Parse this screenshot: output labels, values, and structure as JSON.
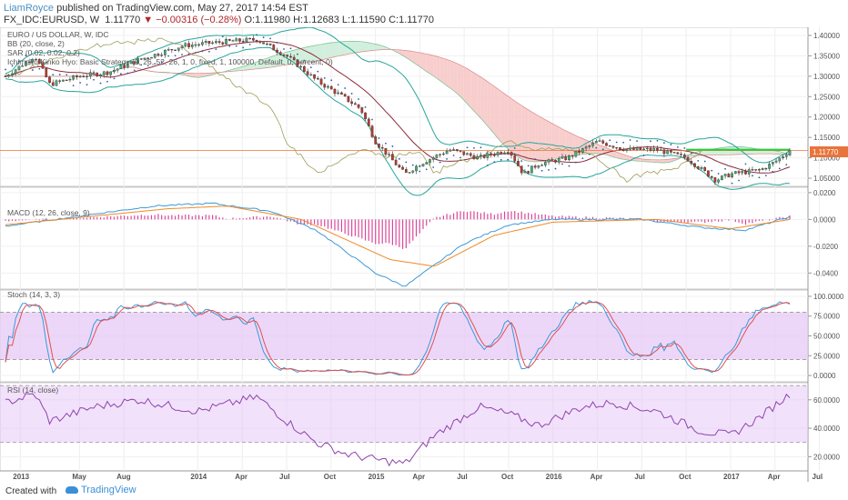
{
  "header": {
    "author": "LiamRoyce",
    "published_text": "published on TradingView.com, May 27, 2017 14:54 EST",
    "symbol_line": "FX_IDC:EURUSD, W",
    "last": "1.11770",
    "change": "▼ −0.00316 (−0.28%)",
    "ohlc": "O:1.11980 H:1.12683 L:1.11590 C:1.11770"
  },
  "colors": {
    "bull": "#4caf7d",
    "bear": "#c0392b",
    "bb": "#26a69a",
    "sar": "#2b5ba8",
    "kumo_bull": "#c9ecd6",
    "kumo_bear": "#f7c6c4",
    "chikou": "#9e9e5a",
    "kijun": "#8d2b3b",
    "price_line": "#e8743b",
    "macd": "#3b9ad9",
    "signal": "#f08a24",
    "hist": "#d9489b",
    "stoch_k": "#3b9ad9",
    "stoch_d": "#e05050",
    "band_fill": "#e7c9f5",
    "rsi": "#8e44ad",
    "green_line": "#2ecc40"
  },
  "panes": {
    "price": {
      "labels": [
        "EURO / US DOLLAR, W, IDC",
        "BB (20, close, 2)",
        "SAR (0.02, 0.02, 0.2)",
        "Ichimoku Kinko Hyo: Basic Strategy (9, 26, 52, 26, 1, 0, fixed, 1, 100000, Default, 0, percent, 0)"
      ],
      "ticks": [
        "1.40000",
        "1.35000",
        "1.30000",
        "1.25000",
        "1.20000",
        "1.15000",
        "1.10000",
        "1.05000"
      ],
      "last_label": "1.11770"
    },
    "macd": {
      "label": "MACD (12, 26, close, 9)",
      "ticks": [
        "0.0200",
        "0.0000",
        "-0.0200",
        "-0.0400"
      ]
    },
    "stoch": {
      "label": "Stoch (14, 3, 3)",
      "ticks": [
        "100.0000",
        "75.0000",
        "50.0000",
        "25.0000",
        "0.0000"
      ]
    },
    "rsi": {
      "label": "RSI (14, close)",
      "ticks": [
        "60.0000",
        "40.0000",
        "20.0000"
      ]
    }
  },
  "x_axis": {
    "ticks": [
      "2013",
      "May",
      "Aug",
      "2014",
      "Apr",
      "Jul",
      "Oct",
      "2015",
      "Apr",
      "Jul",
      "Oct",
      "2016",
      "Apr",
      "Jul",
      "Oct",
      "2017",
      "Apr",
      "Jul"
    ]
  },
  "footer": {
    "created_with": "Created with",
    "brand": "TradingView"
  },
  "chart_data": {
    "type": "candlestick",
    "title": "EURO / US DOLLAR, W, IDC",
    "period": "2013-01 to 2017-05 (weekly)",
    "price": {
      "ylim": [
        1.03,
        1.42
      ],
      "close_keypoints": [
        [
          "2012-12",
          1.3
        ],
        [
          "2013-02",
          1.35
        ],
        [
          "2013-03",
          1.28
        ],
        [
          "2013-05",
          1.3
        ],
        [
          "2013-07",
          1.31
        ],
        [
          "2013-09",
          1.34
        ],
        [
          "2013-12",
          1.375
        ],
        [
          "2014-03",
          1.385
        ],
        [
          "2014-05",
          1.39
        ],
        [
          "2014-07",
          1.35
        ],
        [
          "2014-09",
          1.29
        ],
        [
          "2014-11",
          1.245
        ],
        [
          "2014-12",
          1.22
        ],
        [
          "2015-01",
          1.14
        ],
        [
          "2015-03",
          1.06
        ],
        [
          "2015-04",
          1.085
        ],
        [
          "2015-06",
          1.12
        ],
        [
          "2015-08",
          1.1
        ],
        [
          "2015-10",
          1.12
        ],
        [
          "2015-11",
          1.06
        ],
        [
          "2015-12",
          1.085
        ],
        [
          "2016-02",
          1.1
        ],
        [
          "2016-04",
          1.14
        ],
        [
          "2016-06",
          1.12
        ],
        [
          "2016-08",
          1.12
        ],
        [
          "2016-10",
          1.1
        ],
        [
          "2016-12",
          1.045
        ],
        [
          "2017-01",
          1.06
        ],
        [
          "2017-03",
          1.07
        ],
        [
          "2017-04",
          1.09
        ],
        [
          "2017-05",
          1.118
        ]
      ],
      "last": 1.1177
    },
    "macd": {
      "ylim": [
        -0.052,
        0.024
      ],
      "macd_keypoints": [
        [
          "2012-12",
          -0.005
        ],
        [
          "2013-10",
          0.01
        ],
        [
          "2014-02",
          0.012
        ],
        [
          "2014-06",
          0.006
        ],
        [
          "2014-09",
          -0.008
        ],
        [
          "2015-01",
          -0.04
        ],
        [
          "2015-03",
          -0.05
        ],
        [
          "2015-07",
          -0.018
        ],
        [
          "2015-10",
          -0.004
        ],
        [
          "2016-01",
          0.0
        ],
        [
          "2016-07",
          0.0
        ],
        [
          "2016-11",
          -0.006
        ],
        [
          "2017-02",
          -0.008
        ],
        [
          "2017-05",
          0.002
        ]
      ],
      "signal_keypoints": [
        [
          "2012-12",
          -0.004
        ],
        [
          "2013-11",
          0.008
        ],
        [
          "2014-03",
          0.01
        ],
        [
          "2014-08",
          0.0
        ],
        [
          "2015-02",
          -0.03
        ],
        [
          "2015-05",
          -0.035
        ],
        [
          "2015-09",
          -0.012
        ],
        [
          "2016-01",
          -0.002
        ],
        [
          "2016-08",
          0.0
        ],
        [
          "2017-01",
          -0.007
        ],
        [
          "2017-05",
          0.0
        ]
      ]
    },
    "stochastic": {
      "ylim": [
        0,
        100
      ],
      "bands": [
        20,
        80
      ]
    },
    "rsi": {
      "ylim": [
        10,
        72
      ],
      "bands": [
        30,
        70
      ],
      "keypoints": [
        [
          "2012-12",
          58
        ],
        [
          "2013-02",
          64
        ],
        [
          "2013-03",
          45
        ],
        [
          "2013-06",
          55
        ],
        [
          "2013-09",
          60
        ],
        [
          "2014-01",
          52
        ],
        [
          "2014-05",
          62
        ],
        [
          "2014-07",
          45
        ],
        [
          "2014-09",
          30
        ],
        [
          "2014-11",
          22
        ],
        [
          "2015-01",
          18
        ],
        [
          "2015-03",
          15
        ],
        [
          "2015-05",
          35
        ],
        [
          "2015-08",
          55
        ],
        [
          "2015-10",
          50
        ],
        [
          "2015-12",
          42
        ],
        [
          "2016-03",
          55
        ],
        [
          "2016-05",
          58
        ],
        [
          "2016-08",
          52
        ],
        [
          "2016-11",
          38
        ],
        [
          "2017-01",
          35
        ],
        [
          "2017-03",
          48
        ],
        [
          "2017-05",
          64
        ]
      ]
    }
  }
}
